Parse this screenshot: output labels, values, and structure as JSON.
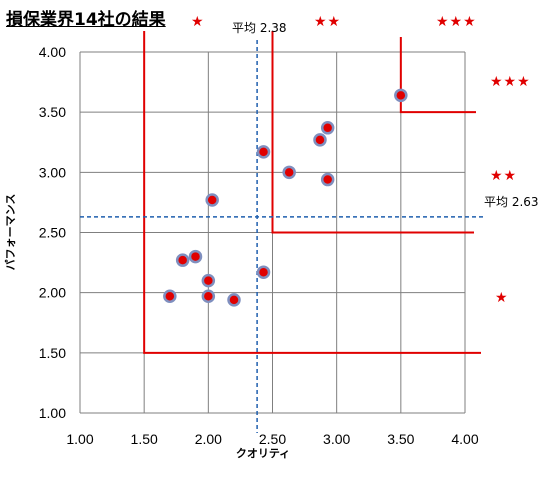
{
  "chart_data": {
    "type": "scatter",
    "title": "損保業界14社の結果",
    "xlabel": "クオリティ",
    "ylabel": "パフォーマンス",
    "xlim": [
      1.0,
      4.0
    ],
    "ylim": [
      1.0,
      4.0
    ],
    "x_ticks": [
      "1.00",
      "1.50",
      "2.00",
      "2.50",
      "3.00",
      "3.50",
      "4.00"
    ],
    "y_ticks": [
      "1.00",
      "1.50",
      "2.00",
      "2.50",
      "3.00",
      "3.50",
      "4.00"
    ],
    "grid": true,
    "points": [
      {
        "x": 1.7,
        "y": 1.97
      },
      {
        "x": 1.8,
        "y": 2.27
      },
      {
        "x": 1.9,
        "y": 2.3
      },
      {
        "x": 2.0,
        "y": 2.1
      },
      {
        "x": 2.0,
        "y": 1.97
      },
      {
        "x": 2.03,
        "y": 2.77
      },
      {
        "x": 2.2,
        "y": 1.94
      },
      {
        "x": 2.43,
        "y": 2.17
      },
      {
        "x": 2.43,
        "y": 3.17
      },
      {
        "x": 2.63,
        "y": 3.0
      },
      {
        "x": 2.87,
        "y": 3.27
      },
      {
        "x": 2.93,
        "y": 3.37
      },
      {
        "x": 2.93,
        "y": 2.94
      },
      {
        "x": 3.5,
        "y": 3.64
      }
    ],
    "average_lines": {
      "x": {
        "value": 2.38,
        "label": "平均 2.38"
      },
      "y": {
        "value": 2.63,
        "label": "平均 2.63"
      }
    },
    "quadrant_boundaries": [
      {
        "x": 1.5,
        "y": 1.5
      },
      {
        "x": 2.5,
        "y": 2.5
      },
      {
        "x": 3.5,
        "y": 3.5
      }
    ],
    "star_labels": {
      "top": [
        "★",
        "★★",
        "★★★"
      ],
      "right": [
        "★★★",
        "★★",
        "★"
      ]
    }
  },
  "colors": {
    "marker_fill": "#e00000",
    "marker_edge": "#7f8fbf",
    "boundary": "#e00000",
    "average": "#1f5fae",
    "grid": "#7f7f7f"
  }
}
